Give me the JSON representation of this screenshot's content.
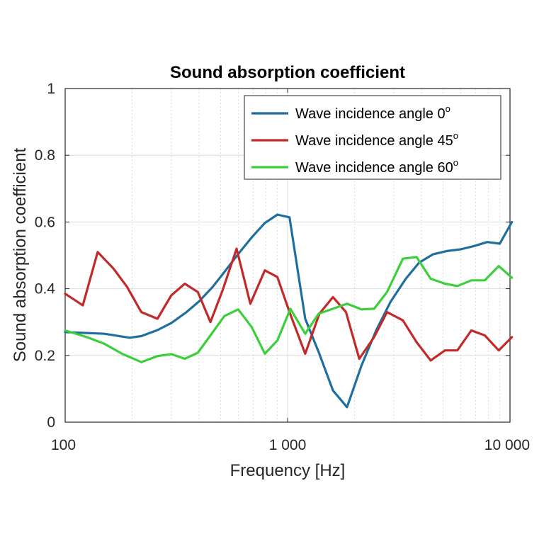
{
  "chart_data": {
    "type": "line",
    "title": "Sound absorption coefficient",
    "xlabel": "Frequency [Hz]",
    "ylabel": "Sound absorption coefficient",
    "xscale": "log",
    "xlim": [
      100,
      10000
    ],
    "ylim": [
      0,
      1
    ],
    "xticks": [
      100,
      1000,
      10000
    ],
    "xtick_labels": [
      "100",
      "1 000",
      "10 000"
    ],
    "yticks": [
      0,
      0.2,
      0.4,
      0.6,
      0.8,
      1
    ],
    "ytick_labels": [
      "0",
      "0.2",
      "0.4",
      "0.6",
      "0.8",
      "1"
    ],
    "grid": true,
    "minor_grid_x": true,
    "legend_position": "top-right",
    "series": [
      {
        "name": "Wave incidence angle 0",
        "name_superscript": "o",
        "color": "#1f6f9e",
        "x": [
          100,
          150,
          195,
          220,
          260,
          300,
          350,
          400,
          460,
          520,
          600,
          690,
          790,
          900,
          1020,
          1200,
          1380,
          1600,
          1850,
          2150,
          2500,
          2900,
          3400,
          3900,
          4500,
          5200,
          6000,
          6900,
          7900,
          9000,
          10200
        ],
        "y": [
          0.27,
          0.265,
          0.253,
          0.258,
          0.276,
          0.297,
          0.329,
          0.362,
          0.405,
          0.45,
          0.504,
          0.554,
          0.597,
          0.622,
          0.614,
          0.31,
          0.21,
          0.095,
          0.045,
          0.17,
          0.275,
          0.36,
          0.43,
          0.478,
          0.503,
          0.513,
          0.518,
          0.528,
          0.54,
          0.535,
          0.6
        ]
      },
      {
        "name": "Wave incidence angle 45",
        "name_superscript": "o",
        "color": "#c22a2a",
        "x": [
          100,
          120,
          140,
          165,
          190,
          220,
          260,
          300,
          345,
          395,
          450,
          510,
          590,
          680,
          790,
          900,
          1020,
          1200,
          1390,
          1600,
          1830,
          2100,
          2450,
          2800,
          3300,
          3800,
          4400,
          5100,
          5800,
          6700,
          7700,
          8900,
          10200
        ],
        "y": [
          0.385,
          0.35,
          0.51,
          0.46,
          0.405,
          0.33,
          0.31,
          0.38,
          0.415,
          0.39,
          0.3,
          0.395,
          0.52,
          0.355,
          0.455,
          0.435,
          0.33,
          0.205,
          0.325,
          0.375,
          0.33,
          0.19,
          0.255,
          0.33,
          0.305,
          0.24,
          0.185,
          0.215,
          0.215,
          0.275,
          0.26,
          0.215,
          0.255
        ]
      },
      {
        "name": "Wave incidence angle 60",
        "name_superscript": "o",
        "color": "#3ccf3c",
        "x": [
          100,
          125,
          150,
          180,
          220,
          260,
          300,
          345,
          395,
          450,
          520,
          600,
          690,
          790,
          900,
          1030,
          1200,
          1380,
          1600,
          1850,
          2150,
          2450,
          2800,
          3300,
          3800,
          4400,
          5100,
          5800,
          6700,
          7700,
          8900,
          10200
        ],
        "y": [
          0.275,
          0.255,
          0.235,
          0.205,
          0.18,
          0.198,
          0.204,
          0.19,
          0.208,
          0.26,
          0.318,
          0.338,
          0.285,
          0.205,
          0.245,
          0.34,
          0.265,
          0.325,
          0.34,
          0.355,
          0.338,
          0.34,
          0.39,
          0.49,
          0.495,
          0.43,
          0.415,
          0.408,
          0.425,
          0.425,
          0.468,
          0.433
        ]
      }
    ]
  }
}
